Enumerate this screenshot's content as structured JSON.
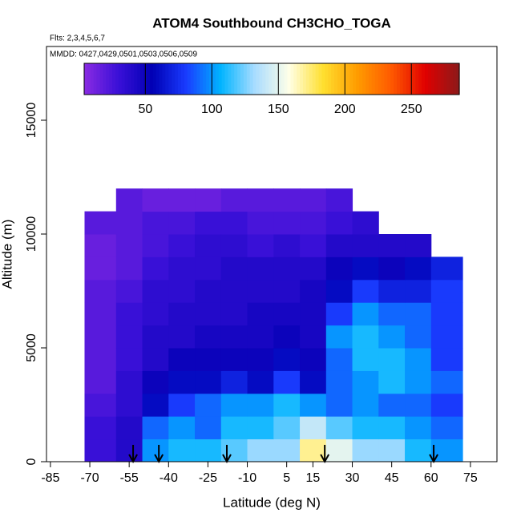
{
  "chart_data": {
    "type": "heatmap",
    "title": "ATOM4 Southbound CH3CHO_TOGA",
    "subtitle": "Flts: 2,3,4,5,6,7",
    "annotation": "MMDD: 0427,0429,0501,0503,0506,0509",
    "xlabel": "Latitude (deg N)",
    "ylabel": "Altitude (m)",
    "xlim": [
      -86.5,
      85.1
    ],
    "ylim": [
      0,
      18240
    ],
    "xticks": [
      -85,
      -70,
      -55,
      -40,
      -25,
      -10,
      5,
      15,
      30,
      45,
      60,
      75
    ],
    "yticks": [
      0,
      5000,
      10000,
      15000
    ],
    "clim": [
      4,
      286
    ],
    "cticks": [
      50,
      100,
      150,
      200,
      250
    ],
    "colors": [
      "#8a2be2",
      "#3a10d8",
      "#0000b4",
      "#1a3cff",
      "#00b4ff",
      "#a8dcff",
      "#ffffe8",
      "#ffe030",
      "#ff9c00",
      "#ff5a00",
      "#e00000",
      "#8b1a1a"
    ],
    "markers": [
      -53.5,
      -43.7,
      -17.8,
      19.5,
      61.0
    ],
    "heatmap": {
      "lat_edges": [
        -72,
        -60,
        -50,
        -40,
        -30,
        -20,
        -10,
        0,
        10,
        20,
        30,
        40,
        50,
        60,
        72
      ],
      "alt_edges": [
        0,
        1000,
        2000,
        3000,
        4000,
        5000,
        6000,
        7000,
        8000,
        9000,
        10000,
        11000,
        12000
      ],
      "values": [
        [
          30,
          40,
          100,
          110,
          110,
          120,
          130,
          130,
          170,
          150,
          130,
          130,
          110,
          100
        ],
        [
          30,
          40,
          90,
          100,
          90,
          110,
          110,
          120,
          140,
          120,
          110,
          110,
          100,
          90
        ],
        [
          25,
          35,
          60,
          80,
          90,
          100,
          100,
          110,
          100,
          90,
          100,
          90,
          90,
          80
        ],
        [
          20,
          35,
          50,
          60,
          60,
          70,
          60,
          80,
          60,
          90,
          100,
          110,
          100,
          90
        ],
        [
          20,
          30,
          40,
          50,
          50,
          50,
          50,
          60,
          50,
          90,
          110,
          110,
          100,
          80
        ],
        [
          20,
          30,
          40,
          40,
          45,
          45,
          45,
          50,
          45,
          100,
          110,
          100,
          90,
          80
        ],
        [
          20,
          30,
          35,
          40,
          40,
          40,
          45,
          45,
          45,
          80,
          100,
          90,
          90,
          80
        ],
        [
          20,
          25,
          35,
          35,
          40,
          40,
          40,
          40,
          45,
          60,
          80,
          70,
          70,
          80
        ],
        [
          15,
          20,
          30,
          35,
          35,
          40,
          40,
          40,
          40,
          50,
          60,
          50,
          60,
          70
        ],
        [
          15,
          20,
          25,
          30,
          35,
          35,
          30,
          35,
          30,
          40,
          40,
          40,
          40,
          null
        ],
        [
          20,
          20,
          25,
          25,
          30,
          30,
          25,
          25,
          25,
          30,
          35,
          null,
          null,
          null
        ],
        [
          null,
          20,
          15,
          15,
          15,
          20,
          20,
          20,
          20,
          25,
          null,
          null,
          null,
          null
        ]
      ]
    }
  }
}
